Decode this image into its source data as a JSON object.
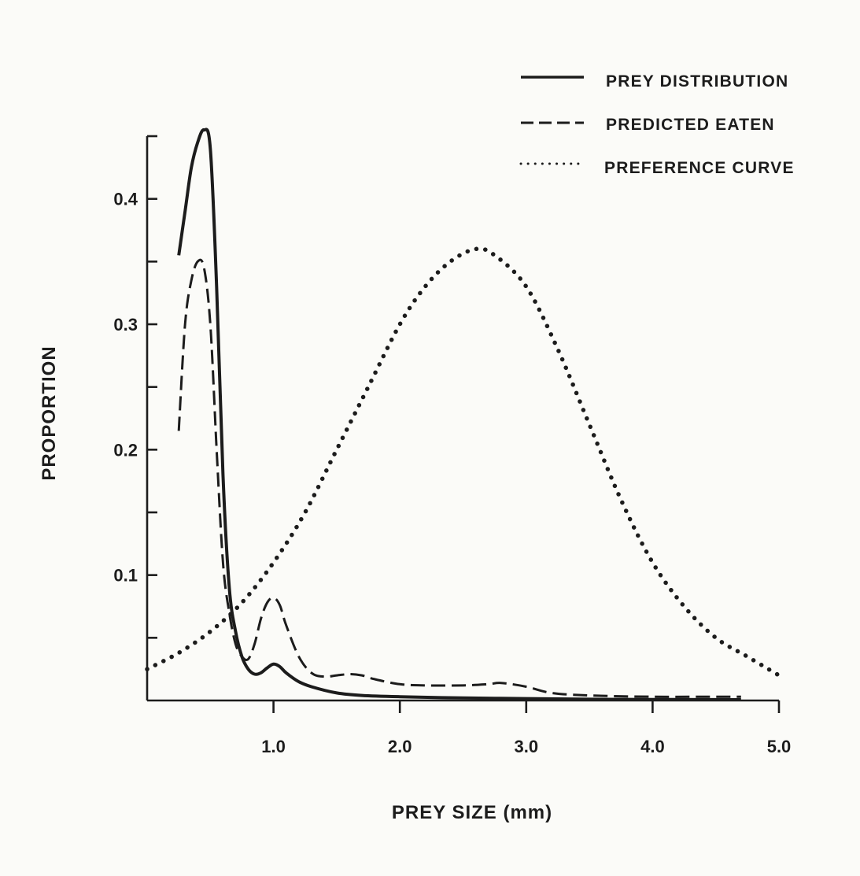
{
  "chart_data": {
    "type": "line",
    "xlabel": "PREY SIZE (mm)",
    "ylabel": "PROPORTION",
    "xlim": [
      0,
      5.0
    ],
    "ylim": [
      0,
      0.45
    ],
    "x_ticks": [
      {
        "value": 1.0,
        "label": "1.0"
      },
      {
        "value": 2.0,
        "label": "2.0"
      },
      {
        "value": 3.0,
        "label": "3.0"
      },
      {
        "value": 4.0,
        "label": "4.0"
      },
      {
        "value": 5.0,
        "label": "5.0"
      }
    ],
    "y_ticks": [
      {
        "value": 0.05,
        "label": ""
      },
      {
        "value": 0.1,
        "label": "0.1"
      },
      {
        "value": 0.15,
        "label": ""
      },
      {
        "value": 0.2,
        "label": "0.2"
      },
      {
        "value": 0.25,
        "label": ""
      },
      {
        "value": 0.3,
        "label": "0.3"
      },
      {
        "value": 0.35,
        "label": ""
      },
      {
        "value": 0.4,
        "label": "0.4"
      },
      {
        "value": 0.45,
        "label": ""
      }
    ],
    "legend_position": "top-right",
    "grid": false,
    "series": [
      {
        "name": "PREY DISTRIBUTION",
        "style": "solid",
        "x": [
          0.25,
          0.3,
          0.35,
          0.4,
          0.45,
          0.5,
          0.55,
          0.6,
          0.65,
          0.7,
          0.75,
          0.8,
          0.85,
          0.9,
          0.95,
          1.0,
          1.05,
          1.1,
          1.2,
          1.3,
          1.5,
          1.7,
          2.0,
          2.5,
          3.0,
          3.5,
          4.0,
          4.5,
          4.7
        ],
        "y": [
          0.355,
          0.39,
          0.425,
          0.445,
          0.455,
          0.44,
          0.33,
          0.18,
          0.09,
          0.055,
          0.035,
          0.025,
          0.021,
          0.022,
          0.026,
          0.029,
          0.027,
          0.022,
          0.015,
          0.011,
          0.006,
          0.004,
          0.003,
          0.002,
          0.0015,
          0.001,
          0.0008,
          0.0007,
          0.0006
        ]
      },
      {
        "name": "PREDICTED EATEN",
        "style": "dashed",
        "x": [
          0.25,
          0.3,
          0.35,
          0.4,
          0.45,
          0.5,
          0.55,
          0.6,
          0.65,
          0.7,
          0.75,
          0.8,
          0.85,
          0.9,
          0.95,
          1.0,
          1.05,
          1.1,
          1.2,
          1.3,
          1.4,
          1.5,
          1.6,
          1.7,
          1.8,
          2.0,
          2.2,
          2.5,
          2.7,
          2.8,
          3.0,
          3.2,
          3.5,
          4.0,
          4.5,
          4.7
        ],
        "y": [
          0.215,
          0.3,
          0.335,
          0.35,
          0.345,
          0.3,
          0.2,
          0.11,
          0.07,
          0.045,
          0.035,
          0.033,
          0.045,
          0.065,
          0.078,
          0.082,
          0.076,
          0.06,
          0.035,
          0.022,
          0.019,
          0.02,
          0.021,
          0.02,
          0.017,
          0.013,
          0.012,
          0.012,
          0.013,
          0.014,
          0.011,
          0.006,
          0.004,
          0.003,
          0.003,
          0.003
        ]
      },
      {
        "name": "PREFERENCE CURVE",
        "style": "dotted",
        "x": [
          0.0,
          0.25,
          0.5,
          0.75,
          1.0,
          1.25,
          1.5,
          1.75,
          2.0,
          2.2,
          2.4,
          2.6,
          2.75,
          3.0,
          3.25,
          3.5,
          3.75,
          4.0,
          4.25,
          4.5,
          4.75,
          5.0
        ],
        "y": [
          0.025,
          0.038,
          0.055,
          0.078,
          0.11,
          0.15,
          0.2,
          0.25,
          0.3,
          0.33,
          0.35,
          0.36,
          0.355,
          0.33,
          0.28,
          0.22,
          0.16,
          0.11,
          0.075,
          0.05,
          0.035,
          0.02
        ]
      }
    ]
  }
}
